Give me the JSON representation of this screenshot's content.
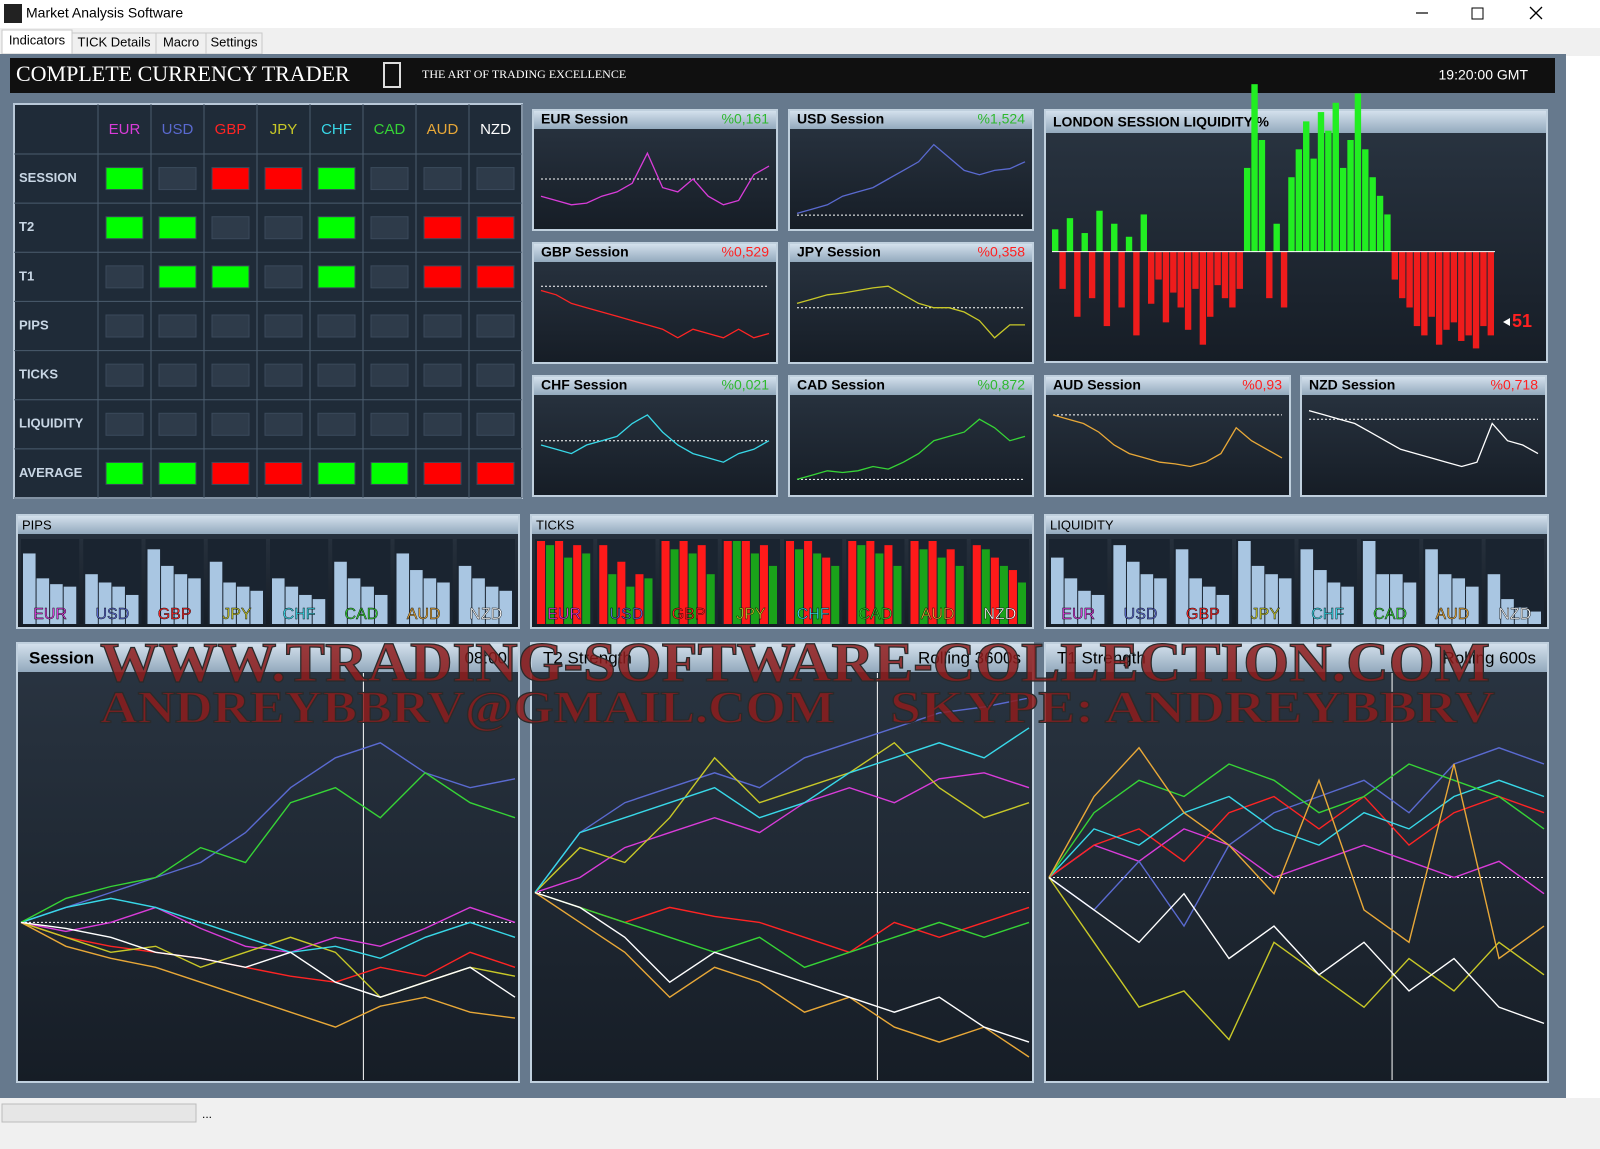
{
  "window": {
    "title": "Market Analysis Software"
  },
  "tabs": [
    "Indicators",
    "TICK Details",
    "Macro",
    "Settings"
  ],
  "header": {
    "title": "COMPLETE CURRENCY TRADER",
    "tagline": "THE ART OF TRADING EXCELLENCE",
    "time": "19:20:00 GMT"
  },
  "currencies": [
    {
      "name": "EUR",
      "color": "#d93cd9"
    },
    {
      "name": "USD",
      "color": "#5a6ad0"
    },
    {
      "name": "GBP",
      "color": "#ff2424"
    },
    {
      "name": "JPY",
      "color": "#c8c828"
    },
    {
      "name": "CHF",
      "color": "#38d8e8"
    },
    {
      "name": "CAD",
      "color": "#36d436"
    },
    {
      "name": "AUD",
      "color": "#e8a838"
    },
    {
      "name": "NZD",
      "color": "#ffffff"
    }
  ],
  "grid": {
    "rows": [
      {
        "label": "SESSION",
        "cells": [
          "#00ff00",
          "#2e3b4a",
          "#ff0000",
          "#ff0000",
          "#00ff00",
          "#2e3b4a",
          "#2e3b4a",
          "#2e3b4a"
        ]
      },
      {
        "label": "T2",
        "cells": [
          "#00ff00",
          "#00ff00",
          "#2e3b4a",
          "#2e3b4a",
          "#00ff00",
          "#2e3b4a",
          "#ff0000",
          "#ff0000"
        ]
      },
      {
        "label": "T1",
        "cells": [
          "#2e3b4a",
          "#00ff00",
          "#00ff00",
          "#2e3b4a",
          "#00ff00",
          "#2e3b4a",
          "#ff0000",
          "#ff0000"
        ]
      },
      {
        "label": "PIPS",
        "cells": [
          "#2e3b4a",
          "#2e3b4a",
          "#2e3b4a",
          "#2e3b4a",
          "#2e3b4a",
          "#2e3b4a",
          "#2e3b4a",
          "#2e3b4a"
        ]
      },
      {
        "label": "TICKS",
        "cells": [
          "#2e3b4a",
          "#2e3b4a",
          "#2e3b4a",
          "#2e3b4a",
          "#2e3b4a",
          "#2e3b4a",
          "#2e3b4a",
          "#2e3b4a"
        ]
      },
      {
        "label": "LIQUIDITY",
        "cells": [
          "#2e3b4a",
          "#2e3b4a",
          "#2e3b4a",
          "#2e3b4a",
          "#2e3b4a",
          "#2e3b4a",
          "#2e3b4a",
          "#2e3b4a"
        ]
      },
      {
        "label": "AVERAGE",
        "cells": [
          "#00ff00",
          "#00ff00",
          "#ff0000",
          "#ff0000",
          "#00ff00",
          "#00ff00",
          "#ff0000",
          "#ff0000"
        ]
      }
    ]
  },
  "sessions": {
    "ylim": [
      0,
      100
    ],
    "panels": [
      {
        "title": "EUR Session",
        "change": "%0,161",
        "change_color": "#2eb82e",
        "ref": 50,
        "values": [
          30,
          25,
          20,
          22,
          30,
          35,
          45,
          80,
          40,
          35,
          50,
          30,
          20,
          25,
          55,
          65
        ]
      },
      {
        "title": "USD Session",
        "change": "%1,524",
        "change_color": "#2eb82e",
        "ref": 8,
        "values": [
          10,
          15,
          20,
          30,
          35,
          40,
          50,
          60,
          70,
          90,
          75,
          60,
          55,
          60,
          62,
          70
        ]
      },
      {
        "title": "GBP Session",
        "change": "%0,529",
        "change_color": "#ff2020",
        "ref": 80,
        "values": [
          75,
          70,
          60,
          55,
          50,
          45,
          40,
          35,
          30,
          20,
          30,
          25,
          20,
          30,
          20,
          25
        ]
      },
      {
        "title": "JPY Session",
        "change": "%0,358",
        "change_color": "#ff2020",
        "ref": 55,
        "values": [
          60,
          65,
          70,
          72,
          75,
          78,
          80,
          70,
          60,
          55,
          55,
          50,
          40,
          20,
          35,
          35
        ]
      },
      {
        "title": "CHF Session",
        "change": "%0,021",
        "change_color": "#2eb82e",
        "ref": 55,
        "values": [
          50,
          45,
          40,
          50,
          55,
          60,
          75,
          85,
          65,
          50,
          40,
          35,
          30,
          40,
          45,
          55
        ]
      },
      {
        "title": "CAD Session",
        "change": "%0,872",
        "change_color": "#2eb82e",
        "ref": 10,
        "values": [
          10,
          15,
          20,
          18,
          20,
          25,
          22,
          30,
          40,
          55,
          60,
          65,
          80,
          70,
          55,
          60
        ]
      },
      {
        "title": "AUD Session",
        "change": "%0,93",
        "change_color": "#ff2020",
        "ref": 85,
        "values": [
          85,
          80,
          75,
          65,
          50,
          40,
          35,
          30,
          28,
          25,
          30,
          40,
          70,
          55,
          45,
          35
        ]
      },
      {
        "title": "NZD Session",
        "change": "%0,718",
        "change_color": "#ff2020",
        "ref": 80,
        "values": [
          90,
          85,
          80,
          75,
          65,
          55,
          45,
          40,
          35,
          30,
          25,
          30,
          75,
          55,
          50,
          40
        ]
      }
    ]
  },
  "liquidity": {
    "title": "LONDON SESSION LIQUIDITY %",
    "current": 51,
    "ylim": [
      -55,
      60
    ],
    "up_color": "#22ee22",
    "down_color": "#ee1c1c",
    "values": [
      12,
      -20,
      18,
      -35,
      10,
      -25,
      22,
      -40,
      15,
      -30,
      8,
      -45,
      20,
      -28,
      -15,
      -38,
      -22,
      -30,
      -42,
      -20,
      -50,
      -35,
      -18,
      -25,
      -30,
      -20,
      45,
      90,
      60,
      -25,
      15,
      -30,
      40,
      55,
      70,
      50,
      75,
      65,
      80,
      45,
      60,
      85,
      55,
      40,
      30,
      20,
      -15,
      -25,
      -30,
      -40,
      -45,
      -35,
      -50,
      -42,
      -38,
      -48,
      -45,
      -52,
      -40,
      -45
    ]
  },
  "bar_panels": [
    {
      "title": "PIPS",
      "colors": [
        "#a9c6e2"
      ],
      "values": [
        [
          85,
          55,
          48,
          45
        ],
        [
          60,
          50,
          45,
          35
        ],
        [
          90,
          70,
          60,
          55
        ],
        [
          75,
          50,
          45,
          40
        ],
        [
          55,
          45,
          35,
          30
        ],
        [
          75,
          55,
          45,
          35
        ],
        [
          85,
          65,
          55,
          50
        ],
        [
          70,
          55,
          45,
          40
        ]
      ]
    },
    {
      "title": "TICKS",
      "colors": [
        "#ff1a1a",
        "#1aa31a"
      ],
      "values": [
        [
          100,
          95,
          100,
          80,
          95,
          85
        ],
        [
          95,
          60,
          75,
          45,
          60,
          55
        ],
        [
          100,
          90,
          100,
          85,
          95,
          60
        ],
        [
          100,
          100,
          100,
          85,
          95,
          70
        ],
        [
          100,
          90,
          100,
          85,
          80,
          70
        ],
        [
          100,
          95,
          100,
          85,
          95,
          70
        ],
        [
          100,
          90,
          100,
          80,
          90,
          70
        ],
        [
          95,
          90,
          80,
          70,
          65,
          50
        ]
      ]
    },
    {
      "title": "LIQUIDITY",
      "colors": [
        "#a9c6e2"
      ],
      "values": [
        [
          80,
          55,
          40,
          35
        ],
        [
          95,
          75,
          60,
          55
        ],
        [
          90,
          55,
          45,
          35
        ],
        [
          100,
          70,
          60,
          55
        ],
        [
          90,
          65,
          50,
          45
        ],
        [
          100,
          60,
          60,
          50
        ],
        [
          90,
          60,
          55,
          45
        ],
        [
          60,
          30,
          20,
          15
        ]
      ]
    }
  ],
  "big_charts": [
    {
      "title": "Session",
      "note": "08:00",
      "ylim": [
        -50,
        80
      ],
      "ref": 0,
      "series": [
        [
          0,
          -3,
          0,
          5,
          -2,
          -8,
          -10,
          -5,
          -8,
          -2,
          5,
          0
        ],
        [
          0,
          5,
          10,
          15,
          20,
          30,
          45,
          55,
          60,
          50,
          45,
          48
        ],
        [
          0,
          -5,
          -8,
          -10,
          -12,
          -15,
          -18,
          -20,
          -15,
          -18,
          -10,
          -15
        ],
        [
          0,
          -5,
          -10,
          -8,
          -15,
          -10,
          -5,
          -10,
          -25,
          -20,
          -15,
          -18
        ],
        [
          0,
          5,
          8,
          5,
          0,
          -5,
          -10,
          -8,
          -12,
          -5,
          0,
          -5
        ],
        [
          0,
          8,
          12,
          15,
          25,
          20,
          40,
          45,
          35,
          50,
          40,
          35
        ],
        [
          0,
          -8,
          -12,
          -15,
          -20,
          -25,
          -30,
          -35,
          -28,
          -25,
          -30,
          -32
        ],
        [
          0,
          -2,
          -5,
          -10,
          -12,
          -15,
          -10,
          -20,
          -25,
          -20,
          -15,
          -25
        ]
      ]
    },
    {
      "title": "T2 Strength",
      "note": "Rolling 3600s",
      "ylim": [
        -60,
        70
      ],
      "ref": 0,
      "series": [
        [
          0,
          5,
          15,
          20,
          25,
          20,
          30,
          35,
          30,
          38,
          40,
          35
        ],
        [
          0,
          20,
          30,
          35,
          40,
          35,
          45,
          50,
          55,
          60,
          62,
          65
        ],
        [
          0,
          -5,
          -10,
          -5,
          -8,
          -10,
          -15,
          -20,
          -10,
          -15,
          -10,
          -5
        ],
        [
          0,
          15,
          10,
          25,
          45,
          30,
          35,
          40,
          50,
          35,
          25,
          30
        ],
        [
          0,
          20,
          25,
          30,
          35,
          25,
          30,
          40,
          45,
          50,
          45,
          55
        ],
        [
          0,
          -5,
          -10,
          -15,
          -20,
          -15,
          -25,
          -20,
          -15,
          -10,
          -15,
          -10
        ],
        [
          0,
          -10,
          -20,
          -35,
          -25,
          -30,
          -40,
          -35,
          -45,
          -50,
          -45,
          -55
        ],
        [
          0,
          -5,
          -15,
          -30,
          -20,
          -25,
          -30,
          -35,
          -40,
          -35,
          -45,
          -50
        ]
      ]
    },
    {
      "title": "T1 Strength",
      "note": "Rolling 600s",
      "ylim": [
        -60,
        60
      ],
      "ref": 0,
      "series": [
        [
          0,
          10,
          5,
          15,
          10,
          0,
          5,
          10,
          5,
          0,
          5,
          -5
        ],
        [
          0,
          -10,
          5,
          -15,
          10,
          20,
          25,
          30,
          20,
          35,
          40,
          35
        ],
        [
          0,
          10,
          15,
          5,
          20,
          25,
          15,
          25,
          10,
          20,
          25,
          20
        ],
        [
          0,
          -20,
          -40,
          -35,
          -50,
          -20,
          -30,
          -40,
          -25,
          -35,
          -20,
          -30
        ],
        [
          0,
          15,
          10,
          20,
          25,
          15,
          10,
          20,
          15,
          25,
          30,
          25
        ],
        [
          0,
          20,
          30,
          25,
          35,
          30,
          20,
          25,
          35,
          30,
          25,
          15
        ],
        [
          0,
          25,
          40,
          20,
          10,
          -5,
          30,
          -10,
          -20,
          35,
          -25,
          -15
        ],
        [
          0,
          -10,
          -20,
          -5,
          -25,
          -15,
          -30,
          -20,
          -35,
          -25,
          -40,
          -45
        ]
      ]
    }
  ],
  "watermark": [
    "WWW.TRADING-SOFTWARE-COLLECTION.COM",
    "ANDREYBBRV@GMAIL.COM",
    "SKYPE: ANDREYBBRV"
  ],
  "status": {
    "text": "..."
  }
}
